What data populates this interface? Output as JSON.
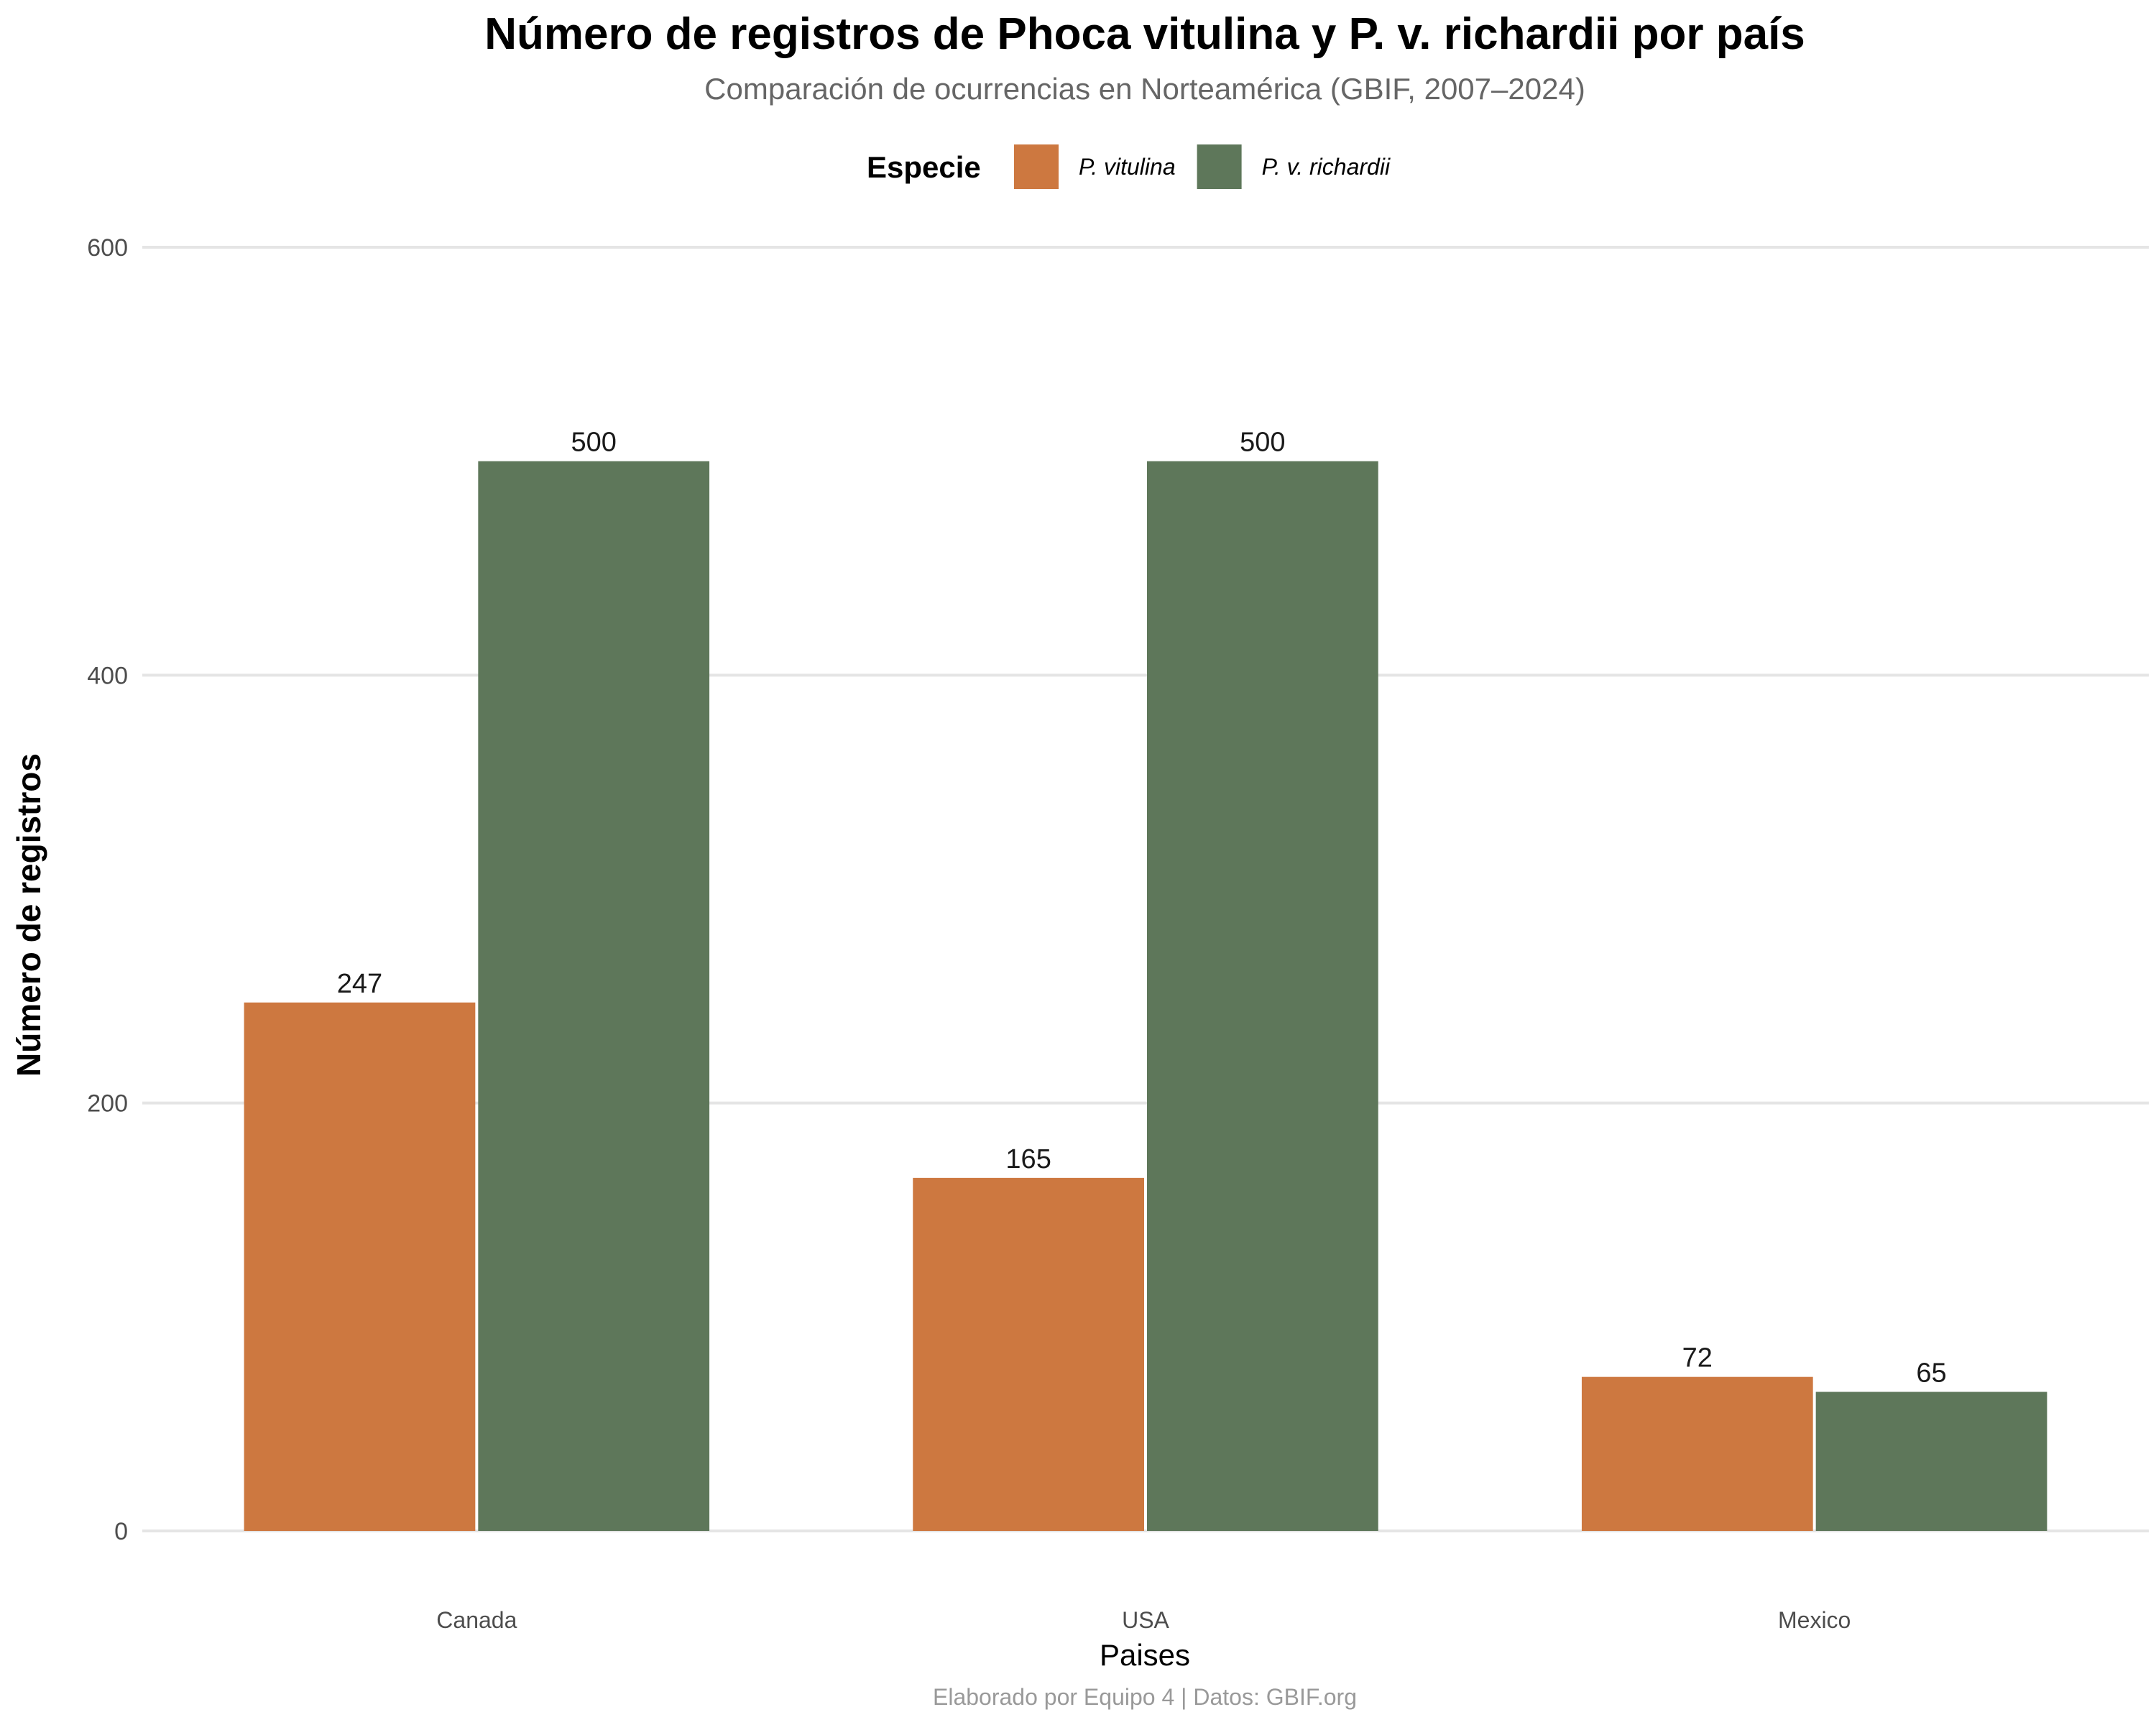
{
  "chart_data": {
    "type": "bar",
    "title": "Número de registros de Phoca vitulina y P. v. richardii por país",
    "subtitle": "Comparación de ocurrencias en Norteamérica (GBIF, 2007–2024)",
    "xlabel": "Paises",
    "ylabel": "Número de registros",
    "caption": "Elaborado por Equipo 4  | Datos: GBIF.org",
    "categories": [
      "Canada",
      "USA",
      "Mexico"
    ],
    "series": [
      {
        "name": "P. vitulina",
        "values": [
          247,
          165,
          72
        ],
        "color": "#CD7840"
      },
      {
        "name": "P. v. richardii",
        "values": [
          500,
          500,
          65
        ],
        "color": "#5E775A"
      }
    ],
    "ylim": [
      0,
      600
    ],
    "yticks": [
      0,
      200,
      400,
      600
    ],
    "legend": {
      "title": "Especie",
      "position": "top"
    },
    "grid": "horizontal-major"
  }
}
